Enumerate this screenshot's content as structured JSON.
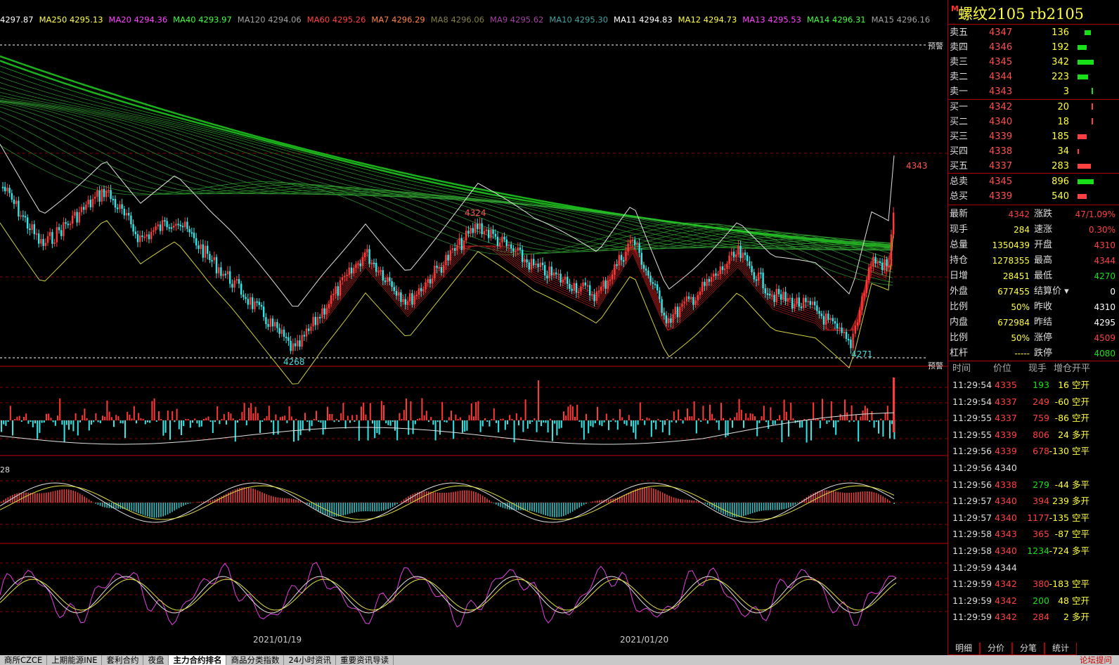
{
  "ma_line": [
    {
      "text": "4297.87",
      "color": "#ffffff"
    },
    {
      "text": "MA250 4295.13",
      "color": "#ffff40"
    },
    {
      "text": "MA20 4294.36",
      "color": "#ff40ff"
    },
    {
      "text": "MA40 4293.97",
      "color": "#40ff40"
    },
    {
      "text": "MA120 4294.06",
      "color": "#a0a0a0"
    },
    {
      "text": "MA60 4295.26",
      "color": "#ff4040"
    },
    {
      "text": "MA7 4296.29",
      "color": "#ff8040"
    },
    {
      "text": "MA8 4296.06",
      "color": "#808040"
    },
    {
      "text": "MA9 4295.62",
      "color": "#a040a0"
    },
    {
      "text": "MA10 4295.30",
      "color": "#40a0a0"
    },
    {
      "text": "MA11 4294.83",
      "color": "#ffffff"
    },
    {
      "text": "MA12 4294.73",
      "color": "#ffff40"
    },
    {
      "text": "MA13 4295.53",
      "color": "#ff40ff"
    },
    {
      "text": "MA14 4296.31",
      "color": "#40ff40"
    },
    {
      "text": "MA15 4296.16",
      "color": "#a0a0a0"
    }
  ],
  "annotations": {
    "high_4343": "4343",
    "high_4324": "4324",
    "low_4268": "4268",
    "low_4271": "4271",
    "warning_top": "预警",
    "warning_bottom": "预警",
    "macd_label": "28"
  },
  "dates": [
    "2021/01/19",
    "2021/01/20"
  ],
  "title": {
    "mark": "M",
    "text": "螺纹2105  rb2105"
  },
  "order_book": {
    "asks": [
      {
        "label": "卖五",
        "price": "4347",
        "qty": "136",
        "bar": 0.15
      },
      {
        "label": "卖四",
        "price": "4346",
        "qty": "192",
        "bar": 0.21
      },
      {
        "label": "卖三",
        "price": "4345",
        "qty": "342",
        "bar": 0.38
      },
      {
        "label": "卖二",
        "price": "4344",
        "qty": "223",
        "bar": 0.25
      },
      {
        "label": "卖一",
        "price": "4343",
        "qty": "3",
        "bar": 0.0
      }
    ],
    "bids": [
      {
        "label": "买一",
        "price": "4342",
        "qty": "20",
        "bar": 0.02
      },
      {
        "label": "买二",
        "price": "4340",
        "qty": "18",
        "bar": 0.02
      },
      {
        "label": "买三",
        "price": "4339",
        "qty": "185",
        "bar": 0.21
      },
      {
        "label": "买四",
        "price": "4338",
        "qty": "34",
        "bar": 0.04
      },
      {
        "label": "买五",
        "price": "4337",
        "qty": "283",
        "bar": 0.32
      }
    ],
    "totals": [
      {
        "label": "总卖",
        "price": "4345",
        "qty": "896",
        "bar": 0.38,
        "color": "#18e018"
      },
      {
        "label": "总买",
        "price": "4339",
        "qty": "540",
        "bar": 0.22,
        "color": "#ff4040"
      }
    ]
  },
  "quotes": [
    {
      "l1": "最新",
      "v1": "4342",
      "c1": "#ff4040",
      "l2": "涨跌",
      "v2": "47/1.09%",
      "c2": "#ff4040"
    },
    {
      "l1": "现手",
      "v1": "284",
      "c1": "#ffff40",
      "l2": "速涨",
      "v2": "0.30%",
      "c2": "#ff4040"
    },
    {
      "l1": "总量",
      "v1": "1350439",
      "c1": "#ffff40",
      "l2": "开盘",
      "v2": "4310",
      "c2": "#ff4040"
    },
    {
      "l1": "持仓",
      "v1": "1278355",
      "c1": "#ffff40",
      "l2": "最高",
      "v2": "4344",
      "c2": "#ff4040"
    },
    {
      "l1": "日增",
      "v1": "28451",
      "c1": "#ffff40",
      "l2": "最低",
      "v2": "4270",
      "c2": "#18e018"
    },
    {
      "l1": "外盘",
      "v1": "677455",
      "c1": "#ffff40",
      "l2": "结算价",
      "v2": "0",
      "c2": "#ffffff"
    },
    {
      "l1": "比例",
      "v1": "50%",
      "c1": "#ffff40",
      "l2": "昨收",
      "v2": "4310",
      "c2": "#ffffff"
    },
    {
      "l1": "内盘",
      "v1": "672984",
      "c1": "#ffff40",
      "l2": "昨结",
      "v2": "4295",
      "c2": "#ffffff"
    },
    {
      "l1": "比例",
      "v1": "50%",
      "c1": "#ffff40",
      "l2": "涨停",
      "v2": "4509",
      "c2": "#ff4040"
    },
    {
      "l1": "杠杆",
      "v1": "-----",
      "c1": "#ffff40",
      "l2": "跌停",
      "v2": "4080",
      "c2": "#18e018"
    }
  ],
  "ticks_header": {
    "time": "时间",
    "price": "价位",
    "vol": "现手",
    "oi": "增仓",
    "type": "开平"
  },
  "ticks": [
    {
      "time": "11:29:54",
      "price": "4335",
      "vol": "193",
      "oi": "16",
      "type": "空开",
      "vc": "#18e018"
    },
    {
      "time": "11:29:54",
      "price": "4337",
      "vol": "249",
      "oi": "-60",
      "type": "空开",
      "vc": "#ff4040"
    },
    {
      "time": "11:29:55",
      "price": "4337",
      "vol": "759",
      "oi": "-86",
      "type": "空开",
      "vc": "#ff4040"
    },
    {
      "time": "11:29:55",
      "price": "4339",
      "vol": "806",
      "oi": "24",
      "type": "多开",
      "vc": "#ff4040"
    },
    {
      "time": "11:29:56",
      "price": "4339",
      "vol": "678",
      "oi": "-130",
      "type": "空平",
      "vc": "#ff4040"
    },
    {
      "time": "11:29:56",
      "price": "4340",
      "vol": "",
      "oi": "",
      "type": "",
      "vc": "#ff4040"
    },
    {
      "time": "11:29:56",
      "price": "4338",
      "vol": "279",
      "oi": "-44",
      "type": "多平",
      "vc": "#18e018"
    },
    {
      "time": "11:29:57",
      "price": "4340",
      "vol": "394",
      "oi": "239",
      "type": "多开",
      "vc": "#ff4040"
    },
    {
      "time": "11:29:57",
      "price": "4340",
      "vol": "1177",
      "oi": "-135",
      "type": "空平",
      "vc": "#ff4040"
    },
    {
      "time": "11:29:58",
      "price": "4343",
      "vol": "365",
      "oi": "-87",
      "type": "空平",
      "vc": "#ff4040"
    },
    {
      "time": "11:29:58",
      "price": "4340",
      "vol": "1234",
      "oi": "-724",
      "type": "多平",
      "vc": "#18e018"
    },
    {
      "time": "11:29:59",
      "price": "4344",
      "vol": "",
      "oi": "",
      "type": "",
      "vc": "#ff4040"
    },
    {
      "time": "11:29:59",
      "price": "4342",
      "vol": "380",
      "oi": "-183",
      "type": "空平",
      "vc": "#ff4040"
    },
    {
      "time": "11:29:59",
      "price": "4342",
      "vol": "200",
      "oi": "48",
      "type": "空开",
      "vc": "#18e018"
    },
    {
      "time": "11:29:59",
      "price": "4342",
      "vol": "284",
      "oi": "2",
      "type": "多开",
      "vc": "#ff4040"
    }
  ],
  "panel_tabs": [
    "明细",
    "分价",
    "分笔",
    "统计"
  ],
  "bottom_tabs": [
    "商所CZCE",
    "上期能源INE",
    "套利合约",
    "夜盘",
    "主力合约排名",
    "商品分类指数",
    "24小时资讯",
    "重要资讯导读"
  ],
  "bottom_active": 4,
  "bottom_right": "论坛提问",
  "colors": {
    "up": "#ff3838",
    "down": "#30e8e8",
    "grid": "#a00000"
  }
}
